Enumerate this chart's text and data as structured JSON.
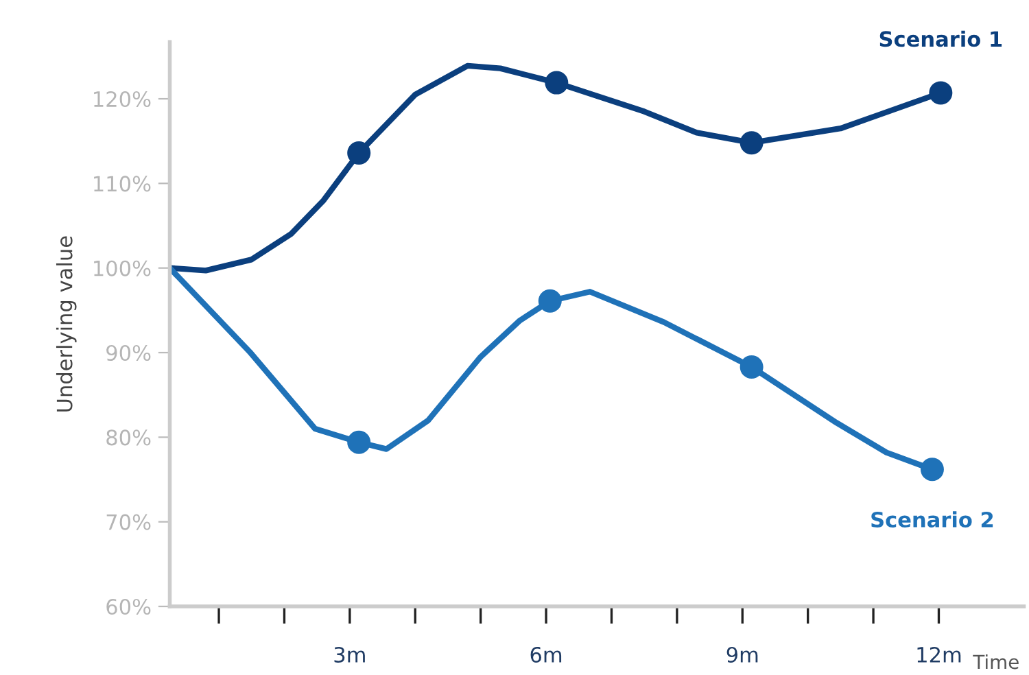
{
  "chart_data": {
    "type": "line",
    "xlabel": "Time",
    "ylabel": "Underlying value",
    "xlim": [
      0.25,
      13.3
    ],
    "ylim": [
      60,
      126.7
    ],
    "xticks": [
      {
        "value": 1,
        "label": null
      },
      {
        "value": 2,
        "label": null
      },
      {
        "value": 3,
        "label": "3m"
      },
      {
        "value": 4,
        "label": null
      },
      {
        "value": 5,
        "label": null
      },
      {
        "value": 6,
        "label": "6m"
      },
      {
        "value": 7,
        "label": null
      },
      {
        "value": 8,
        "label": null
      },
      {
        "value": 9,
        "label": "9m"
      },
      {
        "value": 10,
        "label": null
      },
      {
        "value": 11,
        "label": null
      },
      {
        "value": 12,
        "label": "12m"
      }
    ],
    "yticks": [
      {
        "value": 60,
        "label": "60%"
      },
      {
        "value": 70,
        "label": "70%"
      },
      {
        "value": 80,
        "label": "80%"
      },
      {
        "value": 90,
        "label": "90%"
      },
      {
        "value": 100,
        "label": "100%"
      },
      {
        "value": 110,
        "label": "110%"
      },
      {
        "value": 120,
        "label": "120%"
      }
    ],
    "grid": false,
    "legend": false,
    "series": [
      {
        "name": "Scenario 1",
        "marker": "none",
        "color": "#0b3f7e",
        "x": [
          0.25,
          0.8,
          1.5,
          2.1,
          2.6,
          3.14,
          4.0,
          4.8,
          5.3,
          6.16,
          7.5,
          8.3,
          9.14,
          10.5,
          12.03
        ],
        "values": [
          100,
          99.7,
          101,
          104,
          108,
          113.6,
          120.5,
          123.9,
          123.6,
          121.9,
          118.5,
          116,
          114.8,
          116.5,
          120.7
        ]
      },
      {
        "type": "scatter",
        "marker": "circle",
        "color": "#0b3f7e",
        "x": [
          3.14,
          6.16,
          9.14,
          12.03
        ],
        "values": [
          113.6,
          121.9,
          114.8,
          120.7
        ]
      },
      {
        "name": "Scenario 2",
        "marker": "none",
        "color": "#1f72b8",
        "x": [
          0.25,
          1.47,
          2.47,
          3.14,
          3.56,
          4.2,
          5.0,
          5.6,
          6.06,
          6.67,
          7.8,
          9.14,
          10.44,
          11.2,
          11.9
        ],
        "values": [
          100,
          90.1,
          81.0,
          79.4,
          78.6,
          82,
          89.5,
          93.8,
          96.1,
          97.2,
          93.6,
          88.3,
          81.7,
          78.2,
          76.2
        ]
      },
      {
        "type": "scatter",
        "marker": "circle",
        "color": "#1f72b8",
        "x": [
          3.14,
          6.06,
          9.14,
          11.9
        ],
        "values": [
          79.4,
          96.1,
          88.3,
          76.2
        ]
      }
    ]
  }
}
